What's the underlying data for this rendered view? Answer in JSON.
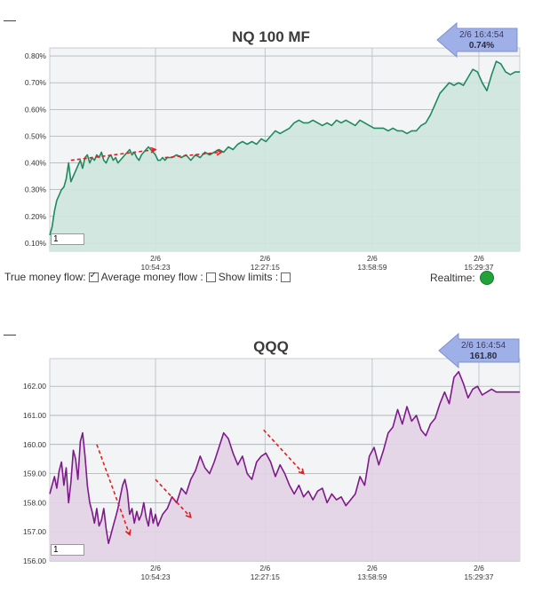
{
  "page": {
    "dash_symbol": "—",
    "controls": {
      "true_money_flow_label": "True money flow:",
      "average_money_flow_label": "Average money flow :",
      "show_limits_label": "Show limits :",
      "realtime_label": "Realtime:",
      "true_money_flow_checked": true,
      "average_money_flow_checked": false,
      "show_limits_checked": false,
      "realtime_status_color": "#22a33a"
    }
  },
  "chart_data": [
    {
      "type": "area",
      "title": "NQ 100 MF",
      "badge": {
        "time": "2/6 16:4:54",
        "value": "0.74%",
        "color": "#9fb0e8"
      },
      "range_input_value": "1",
      "color": {
        "line": "#1e8a5e",
        "fill": "#cfe5df"
      },
      "x_ticks": [
        {
          "date": "2/6",
          "time": "10:54:23",
          "frac": 0.225
        },
        {
          "date": "2/6",
          "time": "12:27:15",
          "frac": 0.458
        },
        {
          "date": "2/6",
          "time": "13:58:59",
          "frac": 0.686
        },
        {
          "date": "2/6",
          "time": "15:29:37",
          "frac": 0.913
        }
      ],
      "y_ticks": [
        "0.10%",
        "0.20%",
        "0.30%",
        "0.40%",
        "0.50%",
        "0.60%",
        "0.70%",
        "0.80%"
      ],
      "y_tick_values": [
        0.1,
        0.2,
        0.3,
        0.4,
        0.5,
        0.6,
        0.7,
        0.8
      ],
      "ylim": [
        0.07,
        0.83
      ],
      "x": [
        0.0,
        0.005,
        0.01,
        0.015,
        0.02,
        0.025,
        0.03,
        0.035,
        0.04,
        0.045,
        0.05,
        0.055,
        0.06,
        0.065,
        0.07,
        0.075,
        0.08,
        0.085,
        0.09,
        0.095,
        0.1,
        0.105,
        0.11,
        0.115,
        0.12,
        0.125,
        0.13,
        0.135,
        0.14,
        0.145,
        0.15,
        0.155,
        0.16,
        0.165,
        0.17,
        0.175,
        0.18,
        0.185,
        0.19,
        0.195,
        0.2,
        0.205,
        0.21,
        0.215,
        0.22,
        0.225,
        0.23,
        0.235,
        0.24,
        0.245,
        0.25,
        0.26,
        0.27,
        0.28,
        0.29,
        0.3,
        0.31,
        0.32,
        0.33,
        0.34,
        0.35,
        0.36,
        0.37,
        0.38,
        0.39,
        0.4,
        0.41,
        0.42,
        0.43,
        0.44,
        0.45,
        0.46,
        0.47,
        0.48,
        0.49,
        0.5,
        0.51,
        0.52,
        0.53,
        0.54,
        0.55,
        0.56,
        0.57,
        0.58,
        0.59,
        0.6,
        0.61,
        0.62,
        0.63,
        0.64,
        0.65,
        0.66,
        0.67,
        0.68,
        0.69,
        0.7,
        0.71,
        0.72,
        0.73,
        0.74,
        0.75,
        0.76,
        0.77,
        0.78,
        0.79,
        0.8,
        0.81,
        0.82,
        0.83,
        0.84,
        0.85,
        0.86,
        0.87,
        0.88,
        0.89,
        0.9,
        0.91,
        0.92,
        0.93,
        0.94,
        0.95,
        0.96,
        0.97,
        0.98,
        0.99,
        1.0
      ],
      "values": [
        0.13,
        0.16,
        0.22,
        0.26,
        0.28,
        0.3,
        0.31,
        0.34,
        0.4,
        0.33,
        0.35,
        0.37,
        0.39,
        0.41,
        0.38,
        0.42,
        0.43,
        0.4,
        0.42,
        0.41,
        0.43,
        0.42,
        0.44,
        0.41,
        0.4,
        0.42,
        0.43,
        0.41,
        0.42,
        0.4,
        0.41,
        0.42,
        0.43,
        0.44,
        0.45,
        0.43,
        0.44,
        0.42,
        0.41,
        0.43,
        0.44,
        0.45,
        0.46,
        0.45,
        0.44,
        0.43,
        0.41,
        0.41,
        0.42,
        0.41,
        0.42,
        0.42,
        0.43,
        0.42,
        0.43,
        0.41,
        0.43,
        0.42,
        0.44,
        0.43,
        0.44,
        0.45,
        0.44,
        0.46,
        0.45,
        0.47,
        0.48,
        0.47,
        0.48,
        0.47,
        0.49,
        0.48,
        0.5,
        0.52,
        0.51,
        0.52,
        0.53,
        0.55,
        0.56,
        0.55,
        0.55,
        0.56,
        0.55,
        0.54,
        0.55,
        0.54,
        0.56,
        0.55,
        0.56,
        0.55,
        0.54,
        0.56,
        0.55,
        0.54,
        0.53,
        0.53,
        0.53,
        0.52,
        0.53,
        0.52,
        0.52,
        0.51,
        0.52,
        0.52,
        0.54,
        0.55,
        0.58,
        0.62,
        0.66,
        0.68,
        0.7,
        0.69,
        0.7,
        0.69,
        0.72,
        0.75,
        0.74,
        0.7,
        0.67,
        0.73,
        0.78,
        0.77,
        0.74,
        0.73,
        0.74,
        0.74
      ],
      "arrows": [
        {
          "x1": 0.045,
          "y1": 0.41,
          "x2": 0.225,
          "y2": 0.45
        },
        {
          "x1": 0.245,
          "y1": 0.42,
          "x2": 0.365,
          "y2": 0.44
        }
      ]
    },
    {
      "type": "area",
      "title": "QQQ",
      "badge": {
        "time": "2/6 16:4:54",
        "value": "161.80",
        "color": "#9fb0e8"
      },
      "range_input_value": "1",
      "color": {
        "line": "#7e1a8a",
        "fill": "#e3d3e6"
      },
      "x_ticks": [
        {
          "date": "2/6",
          "time": "10:54:23",
          "frac": 0.225
        },
        {
          "date": "2/6",
          "time": "12:27:15",
          "frac": 0.458
        },
        {
          "date": "2/6",
          "time": "13:58:59",
          "frac": 0.686
        },
        {
          "date": "2/6",
          "time": "15:29:37",
          "frac": 0.913
        }
      ],
      "y_ticks": [
        "156.00",
        "157.00",
        "158.00",
        "159.00",
        "160.00",
        "161.00",
        "162.00"
      ],
      "y_tick_values": [
        156,
        157,
        158,
        159,
        160,
        161,
        162
      ],
      "ylim": [
        156,
        162.95
      ],
      "x": [
        0.0,
        0.005,
        0.01,
        0.015,
        0.02,
        0.025,
        0.03,
        0.035,
        0.04,
        0.045,
        0.05,
        0.055,
        0.06,
        0.065,
        0.07,
        0.075,
        0.08,
        0.085,
        0.09,
        0.095,
        0.1,
        0.105,
        0.11,
        0.115,
        0.12,
        0.125,
        0.13,
        0.135,
        0.14,
        0.145,
        0.15,
        0.155,
        0.16,
        0.165,
        0.17,
        0.175,
        0.18,
        0.185,
        0.19,
        0.195,
        0.2,
        0.205,
        0.21,
        0.215,
        0.22,
        0.225,
        0.23,
        0.235,
        0.24,
        0.245,
        0.25,
        0.26,
        0.27,
        0.28,
        0.29,
        0.3,
        0.31,
        0.32,
        0.33,
        0.34,
        0.35,
        0.36,
        0.37,
        0.38,
        0.39,
        0.4,
        0.41,
        0.42,
        0.43,
        0.44,
        0.45,
        0.46,
        0.47,
        0.48,
        0.49,
        0.5,
        0.51,
        0.52,
        0.53,
        0.54,
        0.55,
        0.56,
        0.57,
        0.58,
        0.59,
        0.6,
        0.61,
        0.62,
        0.63,
        0.64,
        0.65,
        0.66,
        0.67,
        0.68,
        0.69,
        0.7,
        0.71,
        0.72,
        0.73,
        0.74,
        0.75,
        0.76,
        0.77,
        0.78,
        0.79,
        0.8,
        0.81,
        0.82,
        0.83,
        0.84,
        0.85,
        0.86,
        0.87,
        0.88,
        0.89,
        0.9,
        0.91,
        0.92,
        0.93,
        0.94,
        0.95,
        0.96,
        0.97,
        0.98,
        0.99,
        1.0
      ],
      "values": [
        158.3,
        158.6,
        158.9,
        158.5,
        159.1,
        159.4,
        158.6,
        159.2,
        158.0,
        158.7,
        159.8,
        159.5,
        158.8,
        160.1,
        160.4,
        159.6,
        158.6,
        158.0,
        157.7,
        157.3,
        157.8,
        157.2,
        157.4,
        157.8,
        157.1,
        156.6,
        156.9,
        157.2,
        157.5,
        157.8,
        158.2,
        158.6,
        158.8,
        158.4,
        157.6,
        157.8,
        157.3,
        157.7,
        157.4,
        157.6,
        158.0,
        157.5,
        157.2,
        157.8,
        157.3,
        157.6,
        157.2,
        157.4,
        157.6,
        157.7,
        157.8,
        158.2,
        158.0,
        158.5,
        158.3,
        158.8,
        159.1,
        159.6,
        159.2,
        159.0,
        159.4,
        159.9,
        160.4,
        160.2,
        159.7,
        159.3,
        159.6,
        159.0,
        158.8,
        159.4,
        159.6,
        159.7,
        159.4,
        158.9,
        159.3,
        159.0,
        158.6,
        158.3,
        158.6,
        158.2,
        158.4,
        158.1,
        158.4,
        158.5,
        158.0,
        158.3,
        158.1,
        158.2,
        157.9,
        158.1,
        158.3,
        158.9,
        158.6,
        159.6,
        159.9,
        159.3,
        159.8,
        160.4,
        160.6,
        161.2,
        160.7,
        161.3,
        160.8,
        161.0,
        160.5,
        160.3,
        160.7,
        160.9,
        161.4,
        161.8,
        161.4,
        162.3,
        162.5,
        162.1,
        161.6,
        161.9,
        162.0,
        161.7,
        161.8,
        161.9,
        161.8,
        161.8,
        161.8,
        161.8,
        161.8,
        161.8
      ],
      "arrows": [
        {
          "x1": 0.1,
          "y1": 160.0,
          "x2": 0.17,
          "y2": 156.9
        },
        {
          "x1": 0.225,
          "y1": 158.8,
          "x2": 0.3,
          "y2": 157.5
        },
        {
          "x1": 0.455,
          "y1": 160.5,
          "x2": 0.54,
          "y2": 159.0
        }
      ]
    }
  ]
}
